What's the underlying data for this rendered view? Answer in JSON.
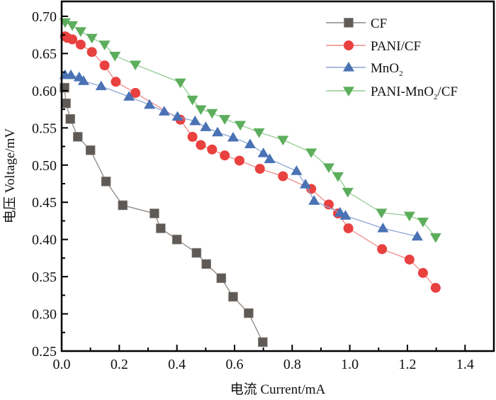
{
  "chart_data": {
    "type": "line",
    "title": "",
    "xlabel": "电流 Current/mA",
    "ylabel": "电压 Voltage/mV",
    "xlim": [
      0.0,
      1.5
    ],
    "ylim": [
      0.25,
      0.72
    ],
    "xticks": [
      0.0,
      0.2,
      0.4,
      0.6,
      0.8,
      1.0,
      1.2,
      1.4
    ],
    "xtick_labels": [
      "0.0",
      "0.2",
      "0.4",
      "0.6",
      "0.8",
      "1.0",
      "1.2",
      "1.4"
    ],
    "yticks": [
      0.25,
      0.3,
      0.35,
      0.4,
      0.45,
      0.5,
      0.55,
      0.6,
      0.65,
      0.7
    ],
    "ytick_labels": [
      "0.25",
      "0.30",
      "0.35",
      "0.40",
      "0.45",
      "0.50",
      "0.55",
      "0.60",
      "0.65",
      "0.70"
    ],
    "grid": false,
    "legend_position": "top-right",
    "series": [
      {
        "name": "CF",
        "legend_label": "CF",
        "marker": "square",
        "color": "#5f5a56",
        "line_color": "#8a8683",
        "x": [
          0.01,
          0.015,
          0.03,
          0.056,
          0.1,
          0.154,
          0.212,
          0.322,
          0.344,
          0.4,
          0.468,
          0.502,
          0.554,
          0.595,
          0.649,
          0.698
        ],
        "y": [
          0.604,
          0.583,
          0.562,
          0.538,
          0.52,
          0.478,
          0.446,
          0.435,
          0.415,
          0.4,
          0.382,
          0.367,
          0.348,
          0.323,
          0.301,
          0.262
        ]
      },
      {
        "name": "PANI/CF",
        "legend_label": "PANI/CF",
        "marker": "circle",
        "color": "#e8413f",
        "line_color": "#f08a88",
        "x": [
          0.012,
          0.02,
          0.037,
          0.066,
          0.105,
          0.149,
          0.188,
          0.256,
          0.412,
          0.454,
          0.483,
          0.522,
          0.566,
          0.617,
          0.688,
          0.768,
          0.866,
          0.927,
          0.959,
          0.995,
          1.112,
          1.207,
          1.254,
          1.298
        ],
        "y": [
          0.673,
          0.671,
          0.669,
          0.662,
          0.652,
          0.634,
          0.612,
          0.597,
          0.561,
          0.538,
          0.527,
          0.521,
          0.513,
          0.506,
          0.495,
          0.485,
          0.468,
          0.447,
          0.435,
          0.415,
          0.387,
          0.373,
          0.355,
          0.335
        ]
      },
      {
        "name": "MnO2",
        "legend_label": "MnO",
        "legend_subscript": "2",
        "marker": "triangle-up",
        "color": "#4a72b4",
        "line_color": "#8aa6d4",
        "x": [
          0.012,
          0.032,
          0.061,
          0.076,
          0.137,
          0.234,
          0.305,
          0.356,
          0.402,
          0.463,
          0.5,
          0.541,
          0.595,
          0.654,
          0.7,
          0.722,
          0.815,
          0.846,
          0.876,
          0.966,
          0.985,
          1.115,
          1.234
        ],
        "y": [
          0.621,
          0.621,
          0.618,
          0.613,
          0.606,
          0.592,
          0.581,
          0.572,
          0.565,
          0.559,
          0.551,
          0.544,
          0.537,
          0.528,
          0.516,
          0.508,
          0.492,
          0.474,
          0.452,
          0.436,
          0.432,
          0.415,
          0.404
        ]
      },
      {
        "name": "PANI-MnO2/CF",
        "legend_label_pre": "PANI-MnO",
        "legend_subscript": "2",
        "legend_label_post": "/CF",
        "marker": "triangle-down",
        "color": "#5cae5c",
        "line_color": "#94cc94",
        "x": [
          0.012,
          0.037,
          0.066,
          0.105,
          0.149,
          0.185,
          0.256,
          0.412,
          0.454,
          0.483,
          0.522,
          0.566,
          0.62,
          0.685,
          0.768,
          0.866,
          0.927,
          0.959,
          0.993,
          1.11,
          1.207,
          1.254,
          1.298
        ],
        "y": [
          0.692,
          0.688,
          0.68,
          0.671,
          0.662,
          0.647,
          0.635,
          0.611,
          0.588,
          0.575,
          0.57,
          0.562,
          0.554,
          0.544,
          0.534,
          0.517,
          0.497,
          0.485,
          0.464,
          0.436,
          0.432,
          0.424,
          0.403
        ]
      }
    ]
  }
}
